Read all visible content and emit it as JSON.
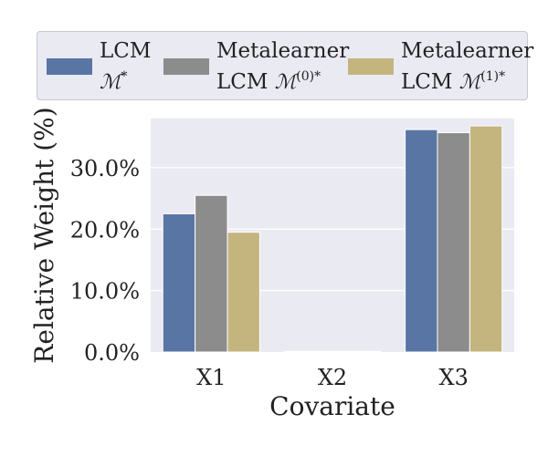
{
  "chart_data": {
    "type": "bar",
    "xlabel": "Covariate",
    "ylabel": "Relative Weight (%)",
    "categories": [
      "X1",
      "X2",
      "X3"
    ],
    "ylim": [
      0,
      38
    ],
    "yticks": [
      "0.0%",
      "10.0%",
      "20.0%",
      "30.0%"
    ],
    "ytick_values": [
      0,
      10,
      20,
      30
    ],
    "grid": true,
    "legend_position": "top",
    "series": [
      {
        "name": "LCM M*",
        "name_line1": "LCM",
        "name_math": "ℳ",
        "name_sup": "*",
        "color": "#5975a4",
        "values": [
          22.5,
          0.1,
          36.2
        ]
      },
      {
        "name": "Metalearner LCM M(0)*",
        "name_line1": "Metalearner",
        "name_prefix": "LCM ",
        "name_math": "ℳ",
        "name_sup": "(0)*",
        "color": "#8c8c8c",
        "values": [
          25.5,
          0.1,
          35.7
        ]
      },
      {
        "name": "Metalearner LCM M(1)*",
        "name_line1": "Metalearner",
        "name_prefix": "LCM ",
        "name_math": "ℳ",
        "name_sup": "(1)*",
        "color": "#c4b57f",
        "values": [
          19.5,
          0.1,
          36.8
        ]
      }
    ],
    "plot_background": "#eaeaf2",
    "grid_color": "#ffffff"
  }
}
